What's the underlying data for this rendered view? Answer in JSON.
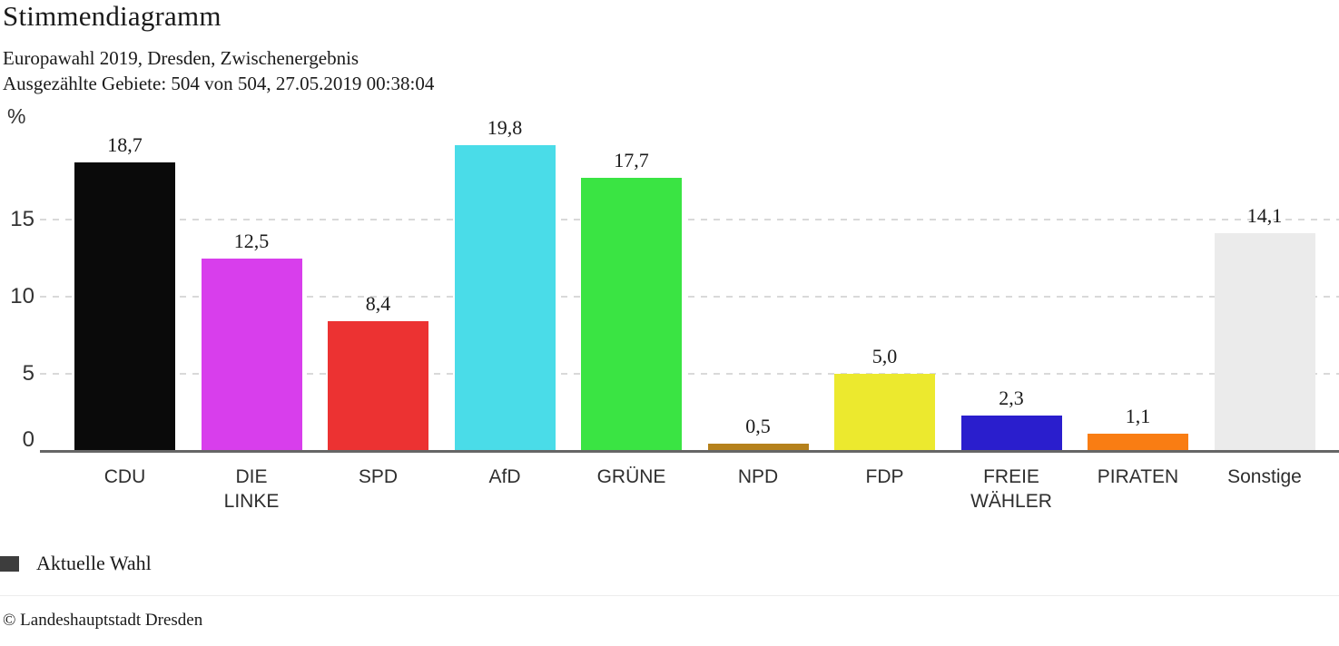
{
  "header": {
    "title": "Stimmendiagramm",
    "subtitle_line1": "Europawahl 2019, Dresden, Zwischenergebnis",
    "subtitle_line2": "Ausgezählte Gebiete: 504 von 504, 27.05.2019 00:38:04"
  },
  "chart_data": {
    "type": "bar",
    "title": "Stimmendiagramm",
    "subtitle": "Europawahl 2019, Dresden, Zwischenergebnis",
    "unit_label": "%",
    "xlabel": "",
    "ylabel": "%",
    "categories": [
      "CDU",
      "DIE LINKE",
      "SPD",
      "AfD",
      "GRÜNE",
      "NPD",
      "FDP",
      "FREIE WÄHLER",
      "PIRATEN",
      "Sonstige"
    ],
    "category_lines": [
      [
        "CDU"
      ],
      [
        "DIE",
        "LINKE"
      ],
      [
        "SPD"
      ],
      [
        "AfD"
      ],
      [
        "GRÜNE"
      ],
      [
        "NPD"
      ],
      [
        "FDP"
      ],
      [
        "FREIE",
        "WÄHLER"
      ],
      [
        "PIRATEN"
      ],
      [
        "Sonstige"
      ]
    ],
    "values": [
      18.7,
      12.5,
      8.4,
      19.8,
      17.7,
      0.5,
      5.0,
      2.3,
      1.1,
      14.1
    ],
    "value_labels": [
      "18,7",
      "12,5",
      "8,4",
      "19,8",
      "17,7",
      "0,5",
      "5,0",
      "2,3",
      "1,1",
      "14,1"
    ],
    "bar_colors": [
      "#0a0a0a",
      "#d83eec",
      "#ec3232",
      "#4adce8",
      "#3ae443",
      "#b5811c",
      "#ece92e",
      "#2a1ecd",
      "#f97d13",
      "#ebebeb"
    ],
    "y_ticks": [
      0,
      5,
      10,
      15
    ],
    "y_tick_labels": [
      "0",
      "5",
      "10",
      "15"
    ],
    "ylim": [
      0,
      21
    ],
    "grid": "horizontal dashed gridlines at 5, 10, 15",
    "legend_position": "bottom-left",
    "legend_entries": [
      "Aktuelle Wahl"
    ]
  },
  "legend": {
    "label": "Aktuelle Wahl",
    "swatch_color": "#3d3d3d"
  },
  "footer": {
    "copyright": "© Landeshauptstadt Dresden"
  },
  "colors": {
    "gridline": "#d9d9d9",
    "axis_line": "#666666",
    "text": "#1a1a1a",
    "axis_text": "#333333",
    "background": "#ffffff"
  }
}
